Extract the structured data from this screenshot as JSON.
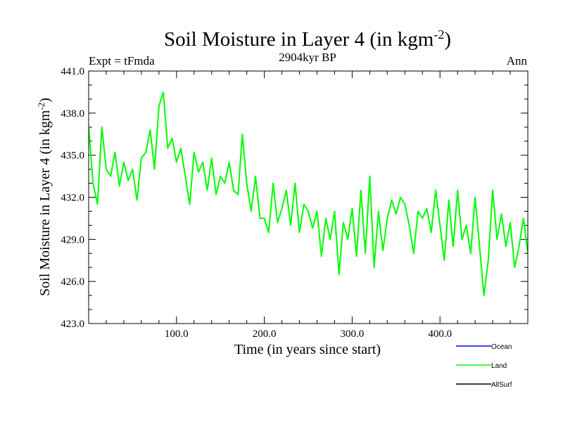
{
  "chart_data": {
    "type": "line",
    "title_main": "Soil Moisture in Layer 4 (in kgm",
    "title_exp": "-2",
    "title_close": ")",
    "subtitle_left": "Expt = tFmda",
    "subtitle_center": "2904kyr BP",
    "subtitle_right": "Ann",
    "xlabel": "Time (in years since start)",
    "ylabel_main": "Soil Moisture in Layer 4 (in kgm",
    "ylabel_exp": "-2",
    "ylabel_close": ")",
    "xlim": [
      0,
      500
    ],
    "ylim": [
      423.0,
      441.0
    ],
    "xticks": [
      100,
      200,
      300,
      400
    ],
    "xtick_labels": [
      "100.0",
      "200.0",
      "300.0",
      "400.0"
    ],
    "yticks": [
      423,
      426,
      429,
      432,
      435,
      438,
      441
    ],
    "ytick_labels": [
      "423.0",
      "426.0",
      "429.0",
      "432.0",
      "435.0",
      "438.0",
      "441.0"
    ],
    "legend_position": "bottom-right",
    "series": [
      {
        "name": "Ocean",
        "color": "#0000ff",
        "values": []
      },
      {
        "name": "Land",
        "color": "#00ff00",
        "x": [
          0,
          5,
          10,
          15,
          20,
          25,
          30,
          35,
          40,
          45,
          50,
          55,
          60,
          65,
          70,
          75,
          80,
          85,
          90,
          95,
          100,
          105,
          110,
          115,
          120,
          125,
          130,
          135,
          140,
          145,
          150,
          155,
          160,
          165,
          170,
          175,
          180,
          185,
          190,
          195,
          200,
          205,
          210,
          215,
          220,
          225,
          230,
          235,
          240,
          245,
          250,
          255,
          260,
          265,
          270,
          275,
          280,
          285,
          290,
          295,
          300,
          305,
          310,
          315,
          320,
          325,
          330,
          335,
          340,
          345,
          350,
          355,
          360,
          365,
          370,
          375,
          380,
          385,
          390,
          395,
          400,
          405,
          410,
          415,
          420,
          425,
          430,
          435,
          440,
          445,
          450,
          455,
          460,
          465,
          470,
          475,
          480,
          485,
          490,
          495,
          500
        ],
        "values": [
          437.0,
          433.0,
          431.5,
          437.0,
          434.0,
          433.5,
          435.2,
          432.8,
          434.5,
          433.2,
          434.0,
          431.8,
          434.8,
          435.2,
          436.8,
          434.0,
          438.5,
          439.5,
          435.5,
          436.2,
          434.5,
          435.5,
          433.5,
          431.5,
          435.2,
          433.8,
          434.5,
          432.5,
          434.8,
          432.2,
          433.5,
          433.0,
          434.5,
          432.5,
          432.2,
          436.5,
          433.0,
          431.0,
          433.5,
          430.5,
          430.5,
          429.5,
          433.0,
          430.2,
          431.2,
          432.5,
          430.0,
          433.0,
          429.5,
          431.5,
          431.0,
          429.8,
          431.0,
          427.8,
          430.5,
          429.0,
          431.0,
          426.5,
          430.2,
          429.0,
          431.2,
          427.8,
          432.5,
          428.0,
          433.5,
          427.0,
          431.0,
          428.2,
          430.5,
          431.8,
          430.8,
          432.0,
          431.5,
          430.0,
          428.0,
          431.0,
          430.5,
          431.2,
          429.5,
          432.5,
          430.0,
          427.5,
          431.8,
          428.5,
          432.5,
          429.0,
          430.0,
          428.0,
          432.0,
          428.5,
          425.0,
          427.5,
          432.5,
          429.0,
          430.8,
          428.5,
          430.2,
          427.0,
          428.5,
          430.5,
          428.0
        ]
      },
      {
        "name": "AllSurf",
        "color": "#000000",
        "values": []
      }
    ]
  }
}
